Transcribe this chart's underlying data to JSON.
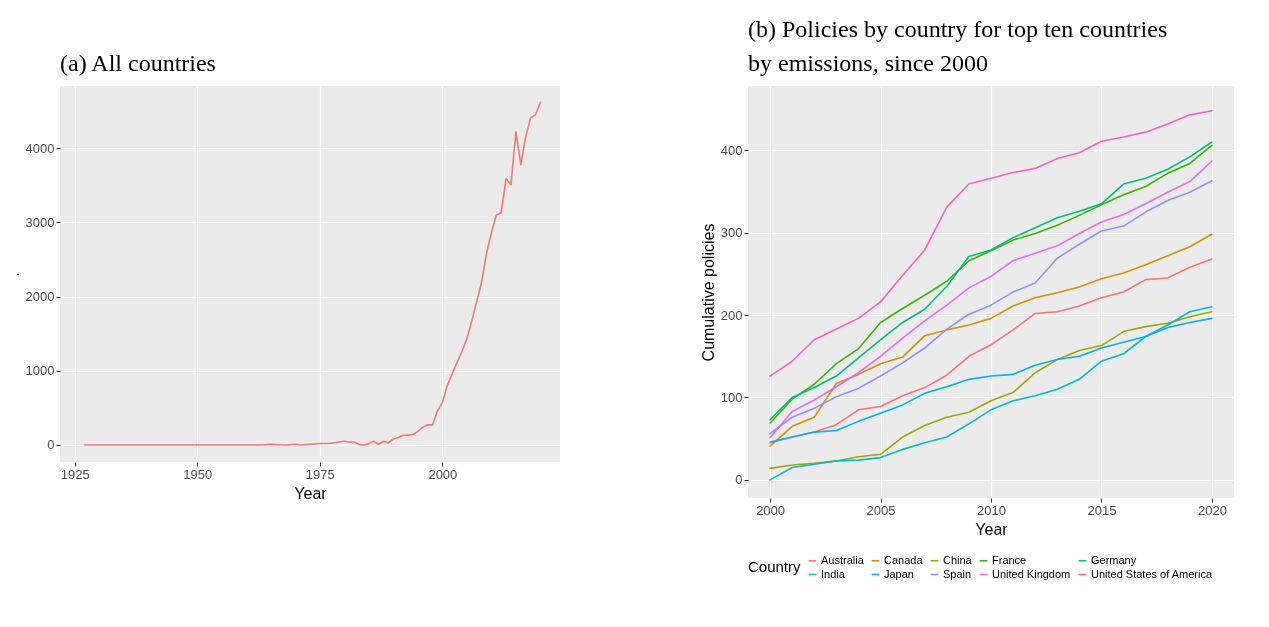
{
  "chart_data": [
    {
      "type": "line",
      "title": "(a) All countries",
      "xlabel": "Year",
      "ylabel": ".",
      "color": "#f8766d",
      "x": [
        1927,
        1935,
        1940,
        1945,
        1950,
        1955,
        1960,
        1963,
        1965,
        1968,
        1970,
        1971,
        1973,
        1975,
        1976,
        1977,
        1978,
        1980,
        1981,
        1982,
        1983,
        1984,
        1985,
        1986,
        1987,
        1988,
        1989,
        1990,
        1991,
        1992,
        1993,
        1994,
        1995,
        1996,
        1997,
        1998,
        1999,
        2000,
        2001,
        2002,
        2003,
        2004,
        2005,
        2006,
        2007,
        2008,
        2009,
        2010,
        2011,
        2012,
        2013,
        2014,
        2015,
        2016,
        2017,
        2018,
        2019,
        2020
      ],
      "values": [
        0,
        0,
        0,
        0,
        0,
        0,
        0,
        0,
        10,
        0,
        10,
        0,
        10,
        20,
        20,
        20,
        30,
        50,
        40,
        40,
        10,
        0,
        20,
        50,
        10,
        50,
        30,
        80,
        100,
        130,
        130,
        140,
        180,
        240,
        270,
        270,
        460,
        570,
        800,
        960,
        1110,
        1260,
        1430,
        1670,
        1930,
        2190,
        2580,
        2860,
        3100,
        3130,
        3590,
        3510,
        4220,
        3780,
        4150,
        4410,
        4450,
        4620
      ],
      "xlim": [
        1922,
        2024
      ],
      "ylim": [
        -230,
        4840
      ],
      "xticks": [
        1925,
        1950,
        1975,
        2000
      ],
      "yticks": [
        0,
        1000,
        2000,
        3000,
        4000
      ],
      "grid": true
    },
    {
      "type": "line",
      "title": "(b) Policies by country for top ten countries by emissions, since 2000",
      "xlabel": "Year",
      "ylabel": "Cumulative policies",
      "legend_title": "Country",
      "legend": "bottom",
      "x": [
        2000,
        2001,
        2002,
        2003,
        2004,
        2005,
        2006,
        2007,
        2008,
        2009,
        2010,
        2011,
        2012,
        2013,
        2014,
        2015,
        2016,
        2017,
        2018,
        2019,
        2020
      ],
      "series": [
        {
          "name": "Australia",
          "color": "#f8766d",
          "values": [
            45,
            52,
            58,
            67,
            85,
            89,
            102,
            112,
            127,
            150,
            164,
            182,
            202,
            204,
            211,
            221,
            228,
            243,
            245,
            258,
            268
          ]
        },
        {
          "name": "Canada",
          "color": "#d89000",
          "values": [
            41,
            65,
            76,
            117,
            128,
            141,
            149,
            175,
            182,
            188,
            196,
            211,
            221,
            227,
            234,
            244,
            251,
            261,
            272,
            283,
            298
          ]
        },
        {
          "name": "China",
          "color": "#a3a500",
          "values": [
            14,
            18,
            20,
            23,
            28,
            31,
            52,
            66,
            76,
            82,
            96,
            106,
            130,
            146,
            157,
            163,
            180,
            186,
            190,
            198,
            204
          ]
        },
        {
          "name": "France",
          "color": "#39b600",
          "values": [
            69,
            98,
            116,
            141,
            159,
            191,
            208,
            224,
            241,
            266,
            278,
            291,
            299,
            309,
            321,
            334,
            346,
            356,
            372,
            384,
            406
          ]
        },
        {
          "name": "Germany",
          "color": "#00bf7d",
          "values": [
            73,
            100,
            112,
            126,
            148,
            170,
            191,
            207,
            235,
            271,
            279,
            294,
            306,
            318,
            326,
            335,
            359,
            366,
            377,
            392,
            410
          ]
        },
        {
          "name": "India",
          "color": "#00bfc4",
          "values": [
            0,
            15,
            19,
            23,
            24,
            27,
            37,
            45,
            52,
            68,
            85,
            96,
            102,
            110,
            122,
            144,
            153,
            174,
            188,
            204,
            210
          ]
        },
        {
          "name": "Japan",
          "color": "#00b0f6",
          "values": [
            46,
            52,
            58,
            60,
            71,
            81,
            91,
            105,
            113,
            122,
            126,
            128,
            139,
            146,
            150,
            160,
            167,
            174,
            185,
            191,
            196
          ]
        },
        {
          "name": "Spain",
          "color": "#9590ff",
          "values": [
            56,
            76,
            87,
            101,
            111,
            126,
            142,
            160,
            183,
            201,
            212,
            228,
            239,
            269,
            286,
            302,
            308,
            325,
            339,
            349,
            363
          ]
        },
        {
          "name": "United Kingdom",
          "color": "#e76bf3",
          "values": [
            51,
            83,
            97,
            113,
            130,
            150,
            172,
            193,
            212,
            233,
            247,
            266,
            275,
            284,
            299,
            313,
            322,
            335,
            349,
            362,
            387
          ]
        },
        {
          "name": "United States of America",
          "color": "#ff62bc",
          "values": [
            126,
            144,
            170,
            183,
            196,
            216,
            248,
            279,
            331,
            359,
            366,
            373,
            378,
            390,
            397,
            411,
            416,
            422,
            432,
            443,
            448
          ]
        }
      ],
      "xlim": [
        1999,
        2021
      ],
      "ylim": [
        -22,
        478
      ],
      "xticks": [
        2000,
        2005,
        2010,
        2015,
        2020
      ],
      "yticks": [
        0,
        100,
        200,
        300,
        400
      ],
      "grid": true
    }
  ]
}
